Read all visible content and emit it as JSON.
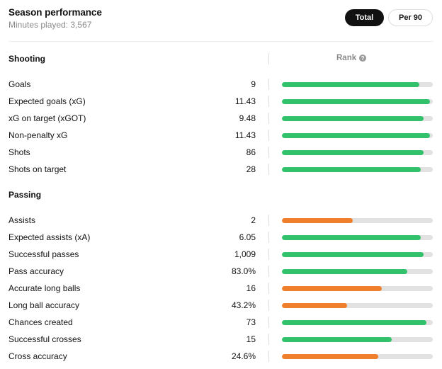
{
  "header": {
    "title": "Season performance",
    "subtitle": "Minutes played: 3,567",
    "toggle_total": "Total",
    "toggle_per90": "Per 90"
  },
  "rank_label": "Rank",
  "colors": {
    "good": "#33c26b",
    "average": "#ef7f2c",
    "track": "#e2e2e2"
  },
  "sections": [
    {
      "title": "Shooting",
      "rows": [
        {
          "label": "Goals",
          "value": "9",
          "rank": 0.91,
          "tier": "good"
        },
        {
          "label": "Expected goals (xG)",
          "value": "11.43",
          "rank": 0.98,
          "tier": "good"
        },
        {
          "label": "xG on target (xGOT)",
          "value": "9.48",
          "rank": 0.94,
          "tier": "good"
        },
        {
          "label": "Non-penalty xG",
          "value": "11.43",
          "rank": 0.98,
          "tier": "good"
        },
        {
          "label": "Shots",
          "value": "86",
          "rank": 0.94,
          "tier": "good"
        },
        {
          "label": "Shots on target",
          "value": "28",
          "rank": 0.92,
          "tier": "good"
        }
      ]
    },
    {
      "title": "Passing",
      "rows": [
        {
          "label": "Assists",
          "value": "2",
          "rank": 0.47,
          "tier": "average"
        },
        {
          "label": "Expected assists (xA)",
          "value": "6.05",
          "rank": 0.92,
          "tier": "good"
        },
        {
          "label": "Successful passes",
          "value": "1,009",
          "rank": 0.94,
          "tier": "good"
        },
        {
          "label": "Pass accuracy",
          "value": "83.0%",
          "rank": 0.83,
          "tier": "good"
        },
        {
          "label": "Accurate long balls",
          "value": "16",
          "rank": 0.66,
          "tier": "average"
        },
        {
          "label": "Long ball accuracy",
          "value": "43.2%",
          "rank": 0.43,
          "tier": "average"
        },
        {
          "label": "Chances created",
          "value": "73",
          "rank": 0.96,
          "tier": "good"
        },
        {
          "label": "Successful crosses",
          "value": "15",
          "rank": 0.73,
          "tier": "good"
        },
        {
          "label": "Cross accuracy",
          "value": "24.6%",
          "rank": 0.64,
          "tier": "average"
        }
      ]
    }
  ]
}
